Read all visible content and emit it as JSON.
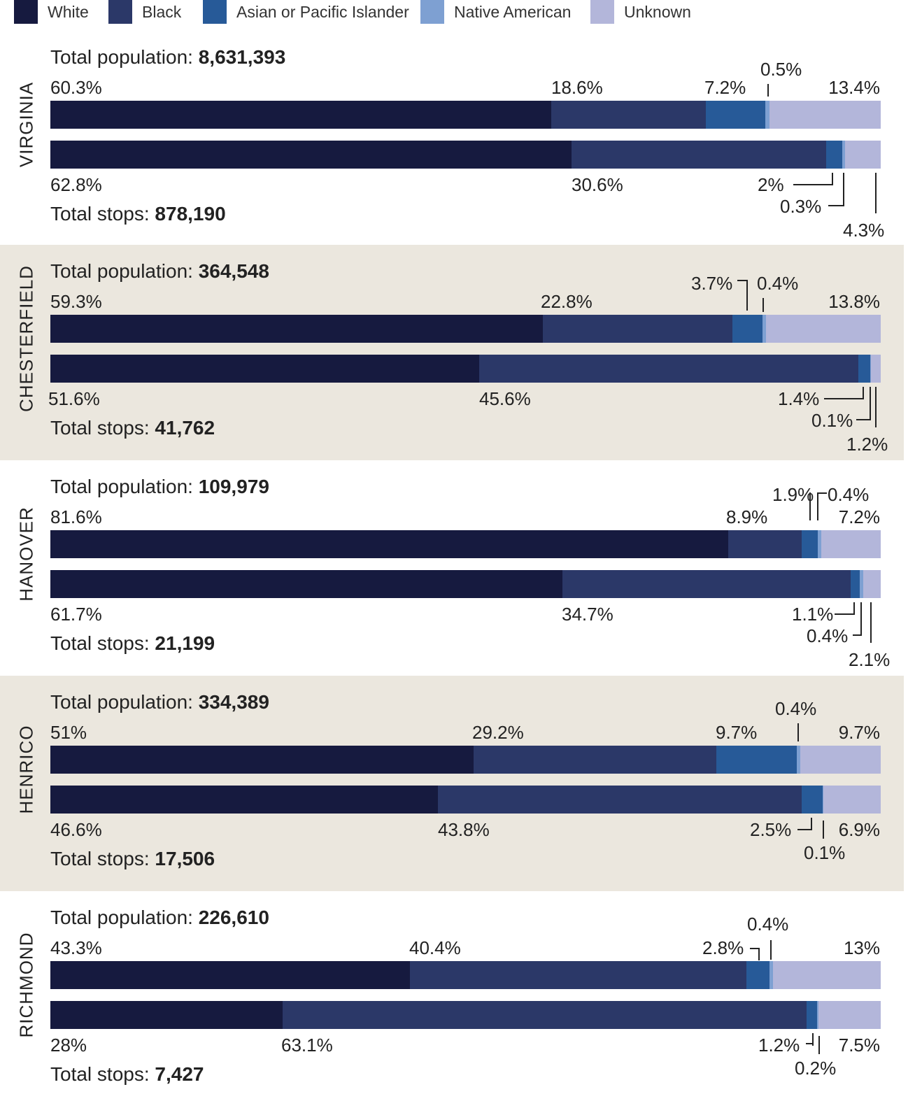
{
  "chart_data": {
    "type": "bar",
    "stacked": true,
    "orientation": "horizontal",
    "legend": {
      "placement": "top",
      "items": [
        {
          "name": "White",
          "color": "#161a3f"
        },
        {
          "name": "Black",
          "color": "#2b3868"
        },
        {
          "name": "Asian or Pacific Islander",
          "color": "#275a98"
        },
        {
          "name": "Native American",
          "color": "#7ea0d2"
        },
        {
          "name": "Unknown",
          "color": "#b3b6da"
        }
      ]
    },
    "categories": [
      "White",
      "Black",
      "Asian or Pacific Islander",
      "Native American",
      "Unknown"
    ],
    "regions": [
      {
        "name": "VIRGINIA",
        "population_label": "Total population:",
        "population": "8,631,393",
        "stops_label": "Total stops:",
        "stops": "878,190",
        "population_values": [
          60.3,
          18.6,
          7.2,
          0.5,
          13.4
        ],
        "population_labels": [
          "60.3%",
          "18.6%",
          "7.2%",
          "0.5%",
          "13.4%"
        ],
        "stops_values": [
          62.8,
          30.6,
          2,
          0.3,
          4.3
        ],
        "stops_labels": [
          "62.8%",
          "30.6%",
          "2%",
          "0.3%",
          "4.3%"
        ]
      },
      {
        "name": "CHESTERFIELD",
        "population_label": "Total population:",
        "population": "364,548",
        "stops_label": "Total stops:",
        "stops": "41,762",
        "population_values": [
          59.3,
          22.8,
          3.7,
          0.4,
          13.8
        ],
        "population_labels": [
          "59.3%",
          "22.8%",
          "3.7%",
          "0.4%",
          "13.8%"
        ],
        "stops_values": [
          51.6,
          45.6,
          1.4,
          0.1,
          1.2
        ],
        "stops_labels": [
          "51.6%",
          "45.6%",
          "1.4%",
          "0.1%",
          "1.2%"
        ]
      },
      {
        "name": "HANOVER",
        "population_label": "Total population:",
        "population": "109,979",
        "stops_label": "Total stops:",
        "stops": "21,199",
        "population_values": [
          81.6,
          8.9,
          1.9,
          0.4,
          7.2
        ],
        "population_labels": [
          "81.6%",
          "8.9%",
          "1.9%",
          "0.4%",
          "7.2%"
        ],
        "stops_values": [
          61.7,
          34.7,
          1.1,
          0.4,
          2.1
        ],
        "stops_labels": [
          "61.7%",
          "34.7%",
          "1.1%",
          "0.4%",
          "2.1%"
        ]
      },
      {
        "name": "HENRICO",
        "population_label": "Total population:",
        "population": "334,389",
        "stops_label": "Total stops:",
        "stops": "17,506",
        "population_values": [
          51,
          29.2,
          9.7,
          0.4,
          9.7
        ],
        "population_labels": [
          "51%",
          "29.2%",
          "9.7%",
          "0.4%",
          "9.7%"
        ],
        "stops_values": [
          46.6,
          43.8,
          2.5,
          0.1,
          6.9
        ],
        "stops_labels": [
          "46.6%",
          "43.8%",
          "2.5%",
          "0.1%",
          "6.9%"
        ]
      },
      {
        "name": "RICHMOND",
        "population_label": "Total population:",
        "population": "226,610",
        "stops_label": "Total stops:",
        "stops": "7,427",
        "population_values": [
          43.3,
          40.4,
          2.8,
          0.4,
          13
        ],
        "population_labels": [
          "43.3%",
          "40.4%",
          "2.8%",
          "0.4%",
          "13%"
        ],
        "stops_values": [
          28,
          63.1,
          1.2,
          0.2,
          7.5
        ],
        "stops_labels": [
          "28%",
          "63.1%",
          "1.2%",
          "0.2%",
          "7.5%"
        ]
      }
    ]
  }
}
